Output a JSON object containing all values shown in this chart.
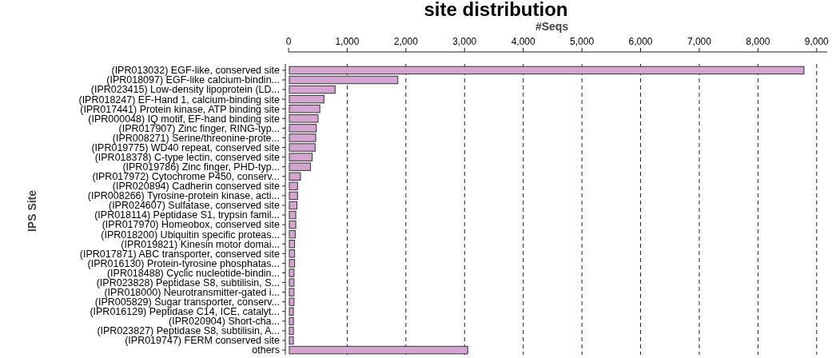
{
  "chart_data": {
    "type": "bar",
    "orientation": "horizontal",
    "title": "site distribution",
    "xlabel": "#Seqs",
    "ylabel": "IPS Site",
    "categories": [
      "(IPR013032) EGF-like, conserved site",
      "(IPR018097) EGF-like calcium-bindin...",
      "(IPR023415) Low-density lipoprotein (LD...",
      "(IPR018247) EF-Hand 1, calcium-binding site",
      "(IPR017441) Protein kinase, ATP binding site",
      "(IPR000048) IQ motif, EF-hand binding site",
      "(IPR017907) Zinc finger, RING-typ...",
      "(IPR008271) Serine/threonine-prote...",
      "(IPR019775) WD40 repeat, conserved site",
      "(IPR018378) C-type lectin, conserved site",
      "(IPR019786) Zinc finger, PHD-typ...",
      "(IPR017972) Cytochrome P450, conserv...",
      "(IPR020894) Cadherin conserved site",
      "(IPR008266) Tyrosine-protein kinase, acti...",
      "(IPR024607) Sulfatase, conserved site",
      "(IPR018114) Peptidase S1, trypsin famil...",
      "(IPR017970) Homeobox, conserved site",
      "(IPR018200) Ubiquitin specific proteas...",
      "(IPR019821) Kinesin motor domai...",
      "(IPR017871) ABC transporter, conserved site",
      "(IPR016130) Protein-tyrosine phosphatas...",
      "(IPR018488) Cyclic nucleotide-bindin...",
      "(IPR023828) Peptidase S8, subtilisin, S...",
      "(IPR018000) Neurotransmitter-gated i...",
      "(IPR005829) Sugar transporter, conserv...",
      "(IPR016129) Peptidase C14, ICE, catalyt...",
      "(IPR020904) Short-cha...",
      "(IPR023827) Peptidase S8, subtilisin,  A...",
      "(IPR019747) FERM conserved site",
      "others"
    ],
    "values": [
      8770,
      1850,
      780,
      590,
      520,
      490,
      460,
      450,
      440,
      390,
      360,
      190,
      140,
      140,
      130,
      110,
      110,
      100,
      90,
      90,
      90,
      80,
      80,
      80,
      80,
      70,
      70,
      70,
      70,
      3040
    ],
    "color": "#d4a5d0",
    "xlim": [
      0,
      9180
    ],
    "xticks": [
      0,
      {
        "value": 1000,
        "label": "1,000"
      },
      {
        "value": 2000,
        "label": "2,000"
      },
      {
        "value": 3000,
        "label": "3,000"
      },
      {
        "value": 4000,
        "label": "4,000"
      },
      {
        "value": 5000,
        "label": "5,000"
      },
      {
        "value": 6000,
        "label": "6,000"
      },
      {
        "value": 7000,
        "label": "7,000"
      },
      {
        "value": 8000,
        "label": "8,000"
      },
      {
        "value": 9000,
        "label": "9,000"
      }
    ],
    "grid": "x"
  }
}
